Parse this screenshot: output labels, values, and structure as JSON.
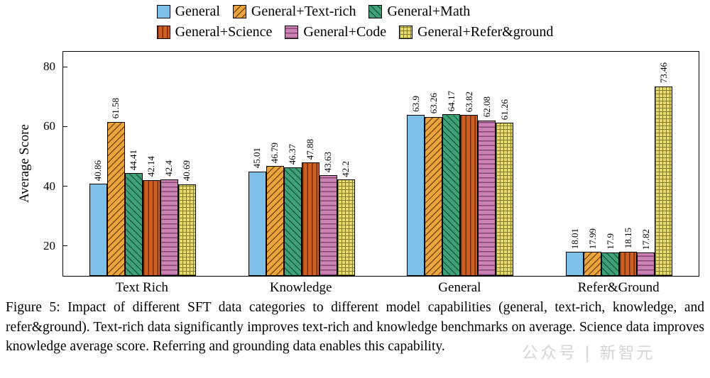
{
  "figure": {
    "caption": "Figure 5: Impact of different SFT data categories to different model capabilities (general, text-rich, knowledge, and refer&ground). Text-rich data significantly improves text-rich and knowledge benchmarks on average. Science data improves knowledge average score. Referring and grounding data enables this capability."
  },
  "watermark": "公众号 | 新智元",
  "chart_data": {
    "type": "bar",
    "title": "",
    "xlabel": "",
    "ylabel": "Average Score",
    "ylim": [
      10,
      85
    ],
    "yticks": [
      20,
      40,
      60,
      80
    ],
    "grid": false,
    "legend_position": "top",
    "legend_rows": 2,
    "categories": [
      "Text Rich",
      "Knowledge",
      "General",
      "Refer&Ground"
    ],
    "series": [
      {
        "name": "General",
        "color": "#7fc0e8",
        "hatch": "none",
        "hatch_color": "#7fc0e8",
        "values": [
          40.86,
          45.01,
          63.9,
          18.01
        ]
      },
      {
        "name": "General+Text-rich",
        "color": "#eca53d",
        "hatch": "diag-ne",
        "hatch_color": "#7a4a12",
        "values": [
          61.58,
          46.79,
          63.26,
          17.99
        ]
      },
      {
        "name": "General+Math",
        "color": "#3fa178",
        "hatch": "diag-nw",
        "hatch_color": "#1c5c40",
        "values": [
          44.41,
          46.37,
          64.17,
          17.9
        ]
      },
      {
        "name": "General+Science",
        "color": "#cc5f21",
        "hatch": "vertical",
        "hatch_color": "#6f2c0b",
        "values": [
          42.14,
          47.88,
          63.82,
          18.15
        ]
      },
      {
        "name": "General+Code",
        "color": "#cc82b5",
        "hatch": "horizontal",
        "hatch_color": "#844772",
        "values": [
          42.4,
          43.63,
          62.08,
          17.82
        ]
      },
      {
        "name": "General+Refer&ground",
        "color": "#e4da6e",
        "hatch": "grid",
        "hatch_color": "#857c2d",
        "values": [
          40.69,
          42.2,
          61.26,
          73.46
        ]
      }
    ]
  }
}
